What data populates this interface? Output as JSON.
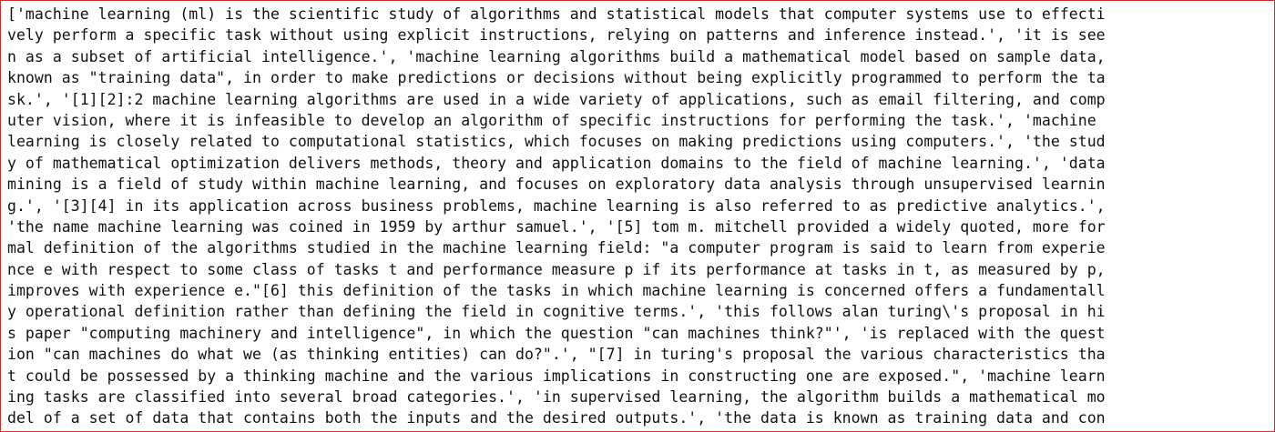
{
  "output": {
    "lines": [
      "['machine learning (ml) is the scientific study of algorithms and statistical models that computer systems use to effecti",
      "vely perform a specific task without using explicit instructions, relying on patterns and inference instead.', 'it is see",
      "n as a subset of artificial intelligence.', 'machine learning algorithms build a mathematical model based on sample data,",
      "known as \"training data\", in order to make predictions or decisions without being explicitly programmed to perform the ta",
      "sk.', '[1][2]:2 machine learning algorithms are used in a wide variety of applications, such as email filtering, and comp",
      "uter vision, where it is infeasible to develop an algorithm of specific instructions for performing the task.', 'machine",
      "learning is closely related to computational statistics, which focuses on making predictions using computers.', 'the stud",
      "y of mathematical optimization delivers methods, theory and application domains to the field of machine learning.', 'data",
      "mining is a field of study within machine learning, and focuses on exploratory data analysis through unsupervised learnin",
      "g.', '[3][4] in its application across business problems, machine learning is also referred to as predictive analytics.',",
      "'the name machine learning was coined in 1959 by arthur samuel.', '[5] tom m. mitchell provided a widely quoted, more for",
      "mal definition of the algorithms studied in the machine learning field: \"a computer program is said to learn from experie",
      "nce e with respect to some class of tasks t and performance measure p if its performance at tasks in t, as measured by p,",
      "improves with experience e.\"[6] this definition of the tasks in which machine learning is concerned offers a fundamentall",
      "y operational definition rather than defining the field in cognitive terms.', 'this follows alan turing\\'s proposal in hi",
      "s paper \"computing machinery and intelligence\", in which the question \"can machines think?\"', 'is replaced with the quest",
      "ion \"can machines do what we (as thinking entities) can do?\".', \"[7] in turing's proposal the various characteristics tha",
      "t could be possessed by a thinking machine and the various implications in constructing one are exposed.\", 'machine learn",
      "ing tasks are classified into several broad categories.', 'in supervised learning, the algorithm builds a mathematical mo",
      "del of a set of data that contains both the inputs and the desired outputs.', 'the data is known as training data and con"
    ]
  },
  "colors": {
    "border": "#d22d2d",
    "text": "#111111",
    "background": "#ffffff"
  }
}
